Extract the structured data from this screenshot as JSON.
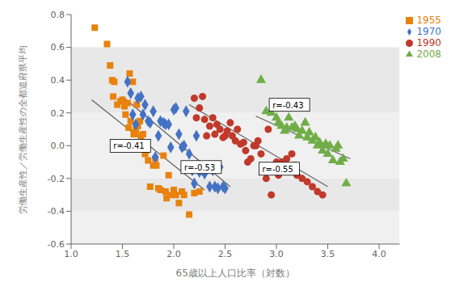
{
  "chart_data": {
    "type": "scatter",
    "xlabel": "65歳以上人口比率（対数）",
    "ylabel": "労働生産性／労働生産性の全都道府県平均",
    "xlim": [
      1.0,
      4.2
    ],
    "ylim": [
      -0.6,
      0.8
    ],
    "xticks": [
      {
        "value": 1.0,
        "label": "1.0"
      },
      1.5,
      {
        "value": 2.0,
        "label": "2.0"
      },
      2.5,
      {
        "value": 3.0,
        "label": "3.0"
      },
      3.5,
      {
        "value": 4.0,
        "label": "4.0"
      }
    ],
    "yticks": [
      -0.6,
      -0.4,
      -0.2,
      {
        "value": 0.0,
        "label": "0.0"
      },
      0.2,
      0.4,
      0.6,
      0.8
    ],
    "grid": false,
    "legend": "upper right",
    "bands": [
      {
        "ymin": 0.2,
        "ymax": 0.6,
        "color": "#e8e8e8"
      },
      {
        "ymin": -0.2,
        "ymax": 0.2,
        "color": "#f0f0f0"
      },
      {
        "ymin": -0.4,
        "ymax": -0.2,
        "color": "#e8e8e8"
      },
      {
        "ymin": -0.6,
        "ymax": -0.4,
        "color": "#f0f0f0"
      }
    ],
    "series": [
      {
        "name": "1955",
        "color": "#E8820C",
        "marker": "square",
        "x": [
          1.23,
          1.35,
          1.38,
          1.4,
          1.41,
          1.42,
          1.45,
          1.48,
          1.5,
          1.52,
          1.53,
          1.55,
          1.56,
          1.57,
          1.58,
          1.6,
          1.61,
          1.62,
          1.63,
          1.64,
          1.65,
          1.67,
          1.68,
          1.7,
          1.72,
          1.73,
          1.75,
          1.77,
          1.8,
          1.82,
          1.83,
          1.85,
          1.87,
          1.9,
          1.92,
          1.93,
          1.95,
          1.97,
          2.0,
          2.02,
          2.05,
          2.08,
          2.1,
          2.15,
          2.2,
          2.25
        ],
        "values": [
          0.72,
          0.62,
          0.49,
          0.4,
          0.3,
          0.39,
          0.25,
          0.27,
          0.28,
          0.24,
          0.19,
          0.26,
          0.11,
          0.44,
          0.15,
          0.39,
          0.07,
          0.08,
          0.1,
          0.25,
          0.12,
          0.15,
          0.06,
          0.07,
          -0.05,
          -0.03,
          -0.09,
          -0.25,
          -0.12,
          -0.08,
          -0.12,
          -0.26,
          -0.27,
          -0.06,
          -0.28,
          -0.32,
          -0.18,
          -0.3,
          -0.27,
          -0.3,
          -0.35,
          -0.28,
          -0.3,
          -0.42,
          -0.29,
          -0.28
        ],
        "trendline": {
          "x": [
            1.2,
            2.3
          ],
          "y": [
            0.28,
            -0.27
          ],
          "color": "#606060"
        },
        "annotation": {
          "x": 1.38,
          "y": -0.04,
          "text": "r=-0.41"
        }
      },
      {
        "name": "1970",
        "color": "#4472C4",
        "marker": "diamond",
        "x": [
          1.55,
          1.58,
          1.6,
          1.63,
          1.65,
          1.68,
          1.7,
          1.72,
          1.75,
          1.77,
          1.8,
          1.82,
          1.85,
          1.87,
          1.9,
          1.92,
          1.95,
          1.97,
          2.0,
          2.02,
          2.05,
          2.08,
          2.1,
          2.12,
          2.15,
          2.18,
          2.2,
          2.22,
          2.25,
          2.28,
          2.3,
          2.33,
          2.35,
          2.38,
          2.4,
          2.43,
          2.45,
          2.48,
          2.5
        ],
        "values": [
          0.39,
          0.32,
          0.19,
          0.13,
          0.29,
          0.3,
          0.19,
          0.25,
          0.15,
          0.14,
          0.21,
          -0.07,
          0.06,
          0.15,
          0.14,
          0.13,
          0.13,
          -0.01,
          0.22,
          0.23,
          0.07,
          -0.01,
          0.0,
          0.21,
          -0.05,
          -0.15,
          -0.23,
          0.06,
          -0.16,
          -0.15,
          -0.17,
          -0.14,
          -0.25,
          -0.15,
          -0.25,
          -0.26,
          -0.13,
          -0.25,
          -0.26
        ],
        "trendline": {
          "x": [
            1.5,
            2.55
          ],
          "y": [
            0.3,
            -0.25
          ],
          "color": "#606060"
        },
        "annotation": {
          "x": 2.07,
          "y": -0.17,
          "text": "r=-0.53"
        }
      },
      {
        "name": "1990",
        "color": "#C0392B",
        "marker": "circle",
        "x": [
          2.2,
          2.22,
          2.25,
          2.28,
          2.3,
          2.32,
          2.35,
          2.38,
          2.4,
          2.42,
          2.45,
          2.48,
          2.5,
          2.52,
          2.55,
          2.57,
          2.6,
          2.62,
          2.65,
          2.68,
          2.7,
          2.72,
          2.75,
          2.78,
          2.8,
          2.82,
          2.85,
          2.88,
          2.9,
          2.92,
          2.95,
          2.97,
          3.0,
          3.02,
          3.05,
          3.08,
          3.1,
          3.12,
          3.15,
          3.18,
          3.2,
          3.25,
          3.3,
          3.35,
          3.4,
          3.45
        ],
        "values": [
          0.29,
          0.17,
          0.23,
          0.3,
          0.16,
          0.06,
          0.12,
          0.17,
          0.07,
          0.13,
          0.1,
          0.05,
          0.06,
          0.09,
          0.14,
          0.06,
          0.03,
          0.1,
          0.01,
          0.02,
          -0.03,
          -0.1,
          -0.08,
          0.0,
          0.0,
          0.03,
          -0.05,
          -0.13,
          -0.2,
          0.1,
          -0.3,
          -0.15,
          -0.1,
          -0.18,
          -0.1,
          -0.1,
          -0.08,
          -0.15,
          -0.05,
          -0.12,
          -0.18,
          -0.2,
          -0.22,
          -0.25,
          -0.28,
          -0.3
        ],
        "trendline": {
          "x": [
            2.15,
            3.5
          ],
          "y": [
            0.25,
            -0.25
          ],
          "color": "#606060"
        },
        "annotation": {
          "x": 2.83,
          "y": -0.18,
          "text": "r=-0.55"
        }
      },
      {
        "name": "2008",
        "color": "#70AD47",
        "marker": "triangle",
        "x": [
          2.85,
          2.9,
          2.95,
          3.0,
          3.02,
          3.05,
          3.08,
          3.1,
          3.12,
          3.15,
          3.18,
          3.2,
          3.22,
          3.25,
          3.28,
          3.3,
          3.32,
          3.35,
          3.38,
          3.4,
          3.42,
          3.45,
          3.48,
          3.5,
          3.52,
          3.55,
          3.58,
          3.6,
          3.62,
          3.65,
          3.68
        ],
        "values": [
          0.4,
          0.21,
          0.2,
          0.17,
          0.14,
          0.12,
          0.09,
          0.11,
          0.17,
          0.11,
          0.12,
          0.1,
          0.06,
          0.09,
          0.14,
          0.05,
          0.08,
          0.03,
          0.05,
          0.0,
          0.02,
          -0.03,
          0.01,
          -0.05,
          0.0,
          -0.09,
          -0.02,
          0.0,
          -0.1,
          -0.08,
          -0.23
        ],
        "trendline": {
          "x": [
            2.8,
            3.72
          ],
          "y": [
            0.18,
            -0.08
          ],
          "color": "#606060"
        },
        "annotation": {
          "x": 2.93,
          "y": 0.21,
          "text": "r=-0.43"
        }
      }
    ]
  }
}
